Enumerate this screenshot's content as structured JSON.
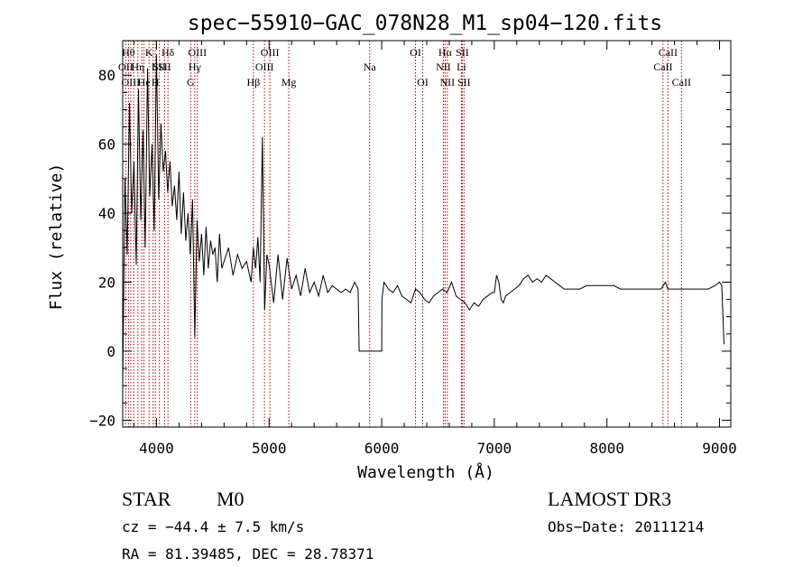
{
  "chart_data": {
    "type": "line",
    "title": "spec−55910−GAC_078N28_M1_sp04−120.fits",
    "xlabel": "Wavelength (Å)",
    "ylabel": "Flux (relative)",
    "xlim": [
      3700,
      9100
    ],
    "ylim": [
      -22,
      90
    ],
    "xticks": [
      4000,
      5000,
      6000,
      7000,
      8000,
      9000
    ],
    "xtick_labels": [
      "4000",
      "5000",
      "6000",
      "7000",
      "8000",
      "9000"
    ],
    "yticks": [
      -20,
      0,
      20,
      40,
      60,
      80
    ],
    "ytick_labels": [
      "−20",
      "0",
      "20",
      "40",
      "60",
      "80"
    ],
    "grid": false,
    "series": [
      {
        "name": "flux",
        "x": [
          3700,
          3720,
          3740,
          3760,
          3780,
          3800,
          3820,
          3840,
          3860,
          3880,
          3900,
          3920,
          3940,
          3960,
          3980,
          4000,
          4020,
          4040,
          4060,
          4080,
          4100,
          4120,
          4140,
          4160,
          4180,
          4200,
          4220,
          4240,
          4260,
          4280,
          4300,
          4320,
          4340,
          4360,
          4380,
          4400,
          4420,
          4440,
          4460,
          4480,
          4500,
          4520,
          4540,
          4560,
          4580,
          4600,
          4640,
          4680,
          4720,
          4760,
          4800,
          4840,
          4860,
          4880,
          4900,
          4920,
          4940,
          4960,
          4980,
          5000,
          5040,
          5080,
          5120,
          5160,
          5200,
          5240,
          5280,
          5320,
          5360,
          5400,
          5440,
          5480,
          5520,
          5560,
          5600,
          5640,
          5680,
          5720,
          5760,
          5790,
          5800,
          5820,
          5900,
          6000,
          6002,
          6020,
          6060,
          6100,
          6140,
          6180,
          6220,
          6260,
          6300,
          6340,
          6380,
          6420,
          6460,
          6500,
          6540,
          6580,
          6620,
          6660,
          6700,
          6740,
          6780,
          6820,
          6860,
          6900,
          6940,
          6980,
          7000,
          7020,
          7040,
          7060,
          7080,
          7100,
          7140,
          7180,
          7220,
          7260,
          7300,
          7340,
          7380,
          7420,
          7460,
          7500,
          7540,
          7580,
          7620,
          7660,
          7700,
          7760,
          7820,
          7880,
          7940,
          8000,
          8060,
          8120,
          8180,
          8240,
          8300,
          8360,
          8420,
          8480,
          8500,
          8520,
          8540,
          8560,
          8600,
          8660,
          8720,
          8780,
          8840,
          8900,
          8960,
          9000,
          9020,
          9030,
          9040
        ],
        "y": [
          -10,
          50,
          28,
          72,
          40,
          55,
          25,
          76,
          38,
          64,
          30,
          82,
          45,
          60,
          35,
          86,
          44,
          66,
          52,
          58,
          46,
          55,
          42,
          48,
          38,
          52,
          34,
          46,
          32,
          40,
          28,
          44,
          4,
          38,
          26,
          34,
          22,
          36,
          24,
          32,
          28,
          30,
          20,
          34,
          24,
          26,
          30,
          22,
          28,
          24,
          26,
          20,
          30,
          24,
          33,
          20,
          62,
          12,
          28,
          25,
          14,
          28,
          15,
          27,
          18,
          22,
          16,
          24,
          17,
          20,
          16,
          22,
          17,
          19,
          18,
          17,
          18,
          17,
          20,
          18,
          0,
          0,
          0,
          0,
          15,
          20,
          18,
          17,
          19,
          16,
          15,
          14,
          18,
          17,
          15,
          14,
          16,
          17,
          18,
          17,
          20,
          16,
          15,
          14,
          12,
          14,
          13,
          15,
          16,
          17,
          17,
          22,
          20,
          15,
          14,
          16,
          17,
          18,
          19,
          21,
          22,
          20,
          21,
          20,
          22,
          21,
          20,
          19,
          18,
          18,
          18,
          18,
          19,
          19,
          19,
          19,
          19,
          18,
          18,
          18,
          18,
          18,
          18,
          18,
          19,
          20,
          18,
          18,
          18,
          18,
          18,
          18,
          18,
          18,
          19,
          20,
          19,
          10,
          2
        ]
      }
    ],
    "lines": [
      {
        "wavelength": 3727,
        "row": 1,
        "label": "OII"
      },
      {
        "wavelength": 3751,
        "row": 0,
        "label": "Hθ"
      },
      {
        "wavelength": 3771,
        "row": 2,
        "label": "OIII"
      },
      {
        "wavelength": 3798,
        "row": 2,
        "label": ""
      },
      {
        "wavelength": 3835,
        "row": 1,
        "label": "Hη"
      },
      {
        "wavelength": 3869,
        "row": 1,
        "label": ""
      },
      {
        "wavelength": 3889,
        "row": 2,
        "label": "He"
      },
      {
        "wavelength": 3934,
        "row": 0,
        "label": "K"
      },
      {
        "wavelength": 3970,
        "row": 1,
        "label": "I"
      },
      {
        "wavelength": 3990,
        "row": 2,
        "label": "H"
      },
      {
        "wavelength": 4026,
        "row": 1,
        "label": "SII"
      },
      {
        "wavelength": 4072,
        "row": 1,
        "label": "SII"
      },
      {
        "wavelength": 4102,
        "row": 0,
        "label": "Hδ"
      },
      {
        "wavelength": 4304,
        "row": 2,
        "label": "G"
      },
      {
        "wavelength": 4340,
        "row": 1,
        "label": "Hγ"
      },
      {
        "wavelength": 4363,
        "row": 0,
        "label": "OIII"
      },
      {
        "wavelength": 4861,
        "row": 2,
        "label": "Hβ"
      },
      {
        "wavelength": 4959,
        "row": 1,
        "label": "OIII"
      },
      {
        "wavelength": 5007,
        "row": 0,
        "label": "OIII"
      },
      {
        "wavelength": 5175,
        "row": 2,
        "label": "Mg"
      },
      {
        "wavelength": 5893,
        "row": 1,
        "label": "Na"
      },
      {
        "wavelength": 6300,
        "row": 0,
        "label": "OI"
      },
      {
        "wavelength": 6364,
        "row": 2,
        "label": "OI"
      },
      {
        "wavelength": 6548,
        "row": 1,
        "label": "NII"
      },
      {
        "wavelength": 6563,
        "row": 0,
        "label": "Hα"
      },
      {
        "wavelength": 6583,
        "row": 2,
        "label": "NII"
      },
      {
        "wavelength": 6708,
        "row": 1,
        "label": "Li"
      },
      {
        "wavelength": 6716,
        "row": 0,
        "label": "SII"
      },
      {
        "wavelength": 6731,
        "row": 2,
        "label": "SII"
      },
      {
        "wavelength": 8498,
        "row": 1,
        "label": "CaII"
      },
      {
        "wavelength": 8542,
        "row": 0,
        "label": "CaII"
      },
      {
        "wavelength": 8662,
        "row": 2,
        "label": "CaII"
      }
    ],
    "line_color": "#b00000"
  },
  "info": {
    "class": "STAR",
    "subclass": "M0",
    "survey": "LAMOST DR3",
    "cz": "cz = −44.4 ± 7.5 km/s",
    "obs_date": "Obs−Date: 20111214",
    "radec": "RA =  81.39485, DEC =  28.78371"
  }
}
